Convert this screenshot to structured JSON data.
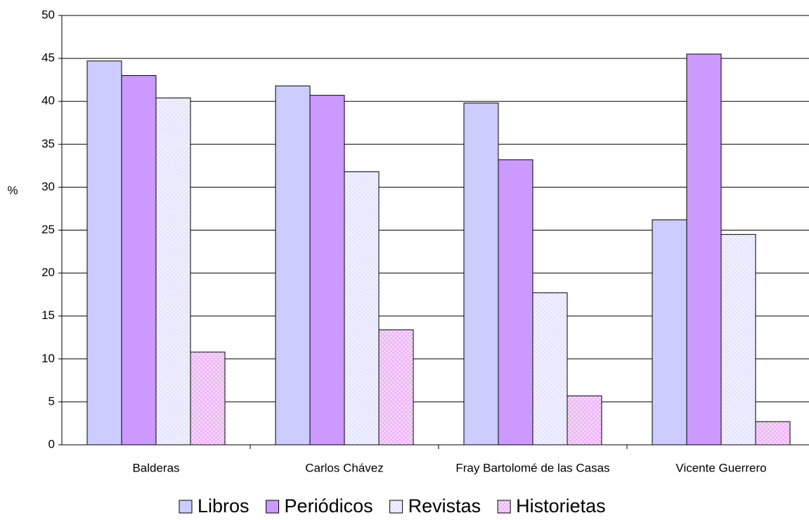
{
  "chart_data": {
    "type": "bar",
    "y_label": "%",
    "categories": [
      "Balderas",
      "Carlos Chávez",
      "Fray Bartolomé de las Casas",
      "Vicente Guerrero"
    ],
    "series": [
      {
        "name": "Libros",
        "color": "#ccccff",
        "values": [
          44.7,
          41.8,
          39.8,
          26.2
        ]
      },
      {
        "name": "Periódicos",
        "color": "#cc99ff",
        "values": [
          43.0,
          40.7,
          33.2,
          45.5
        ]
      },
      {
        "name": "Revistas",
        "color": "#e6e6ff",
        "values": [
          40.4,
          31.8,
          17.7,
          24.5
        ]
      },
      {
        "name": "Historietas",
        "color": "#f0c8f8",
        "values": [
          10.8,
          13.4,
          5.7,
          2.7
        ]
      }
    ],
    "ylim": [
      0,
      50
    ],
    "yticks": [
      0,
      5,
      10,
      15,
      20,
      25,
      30,
      35,
      40,
      45,
      50
    ],
    "grid": true
  }
}
